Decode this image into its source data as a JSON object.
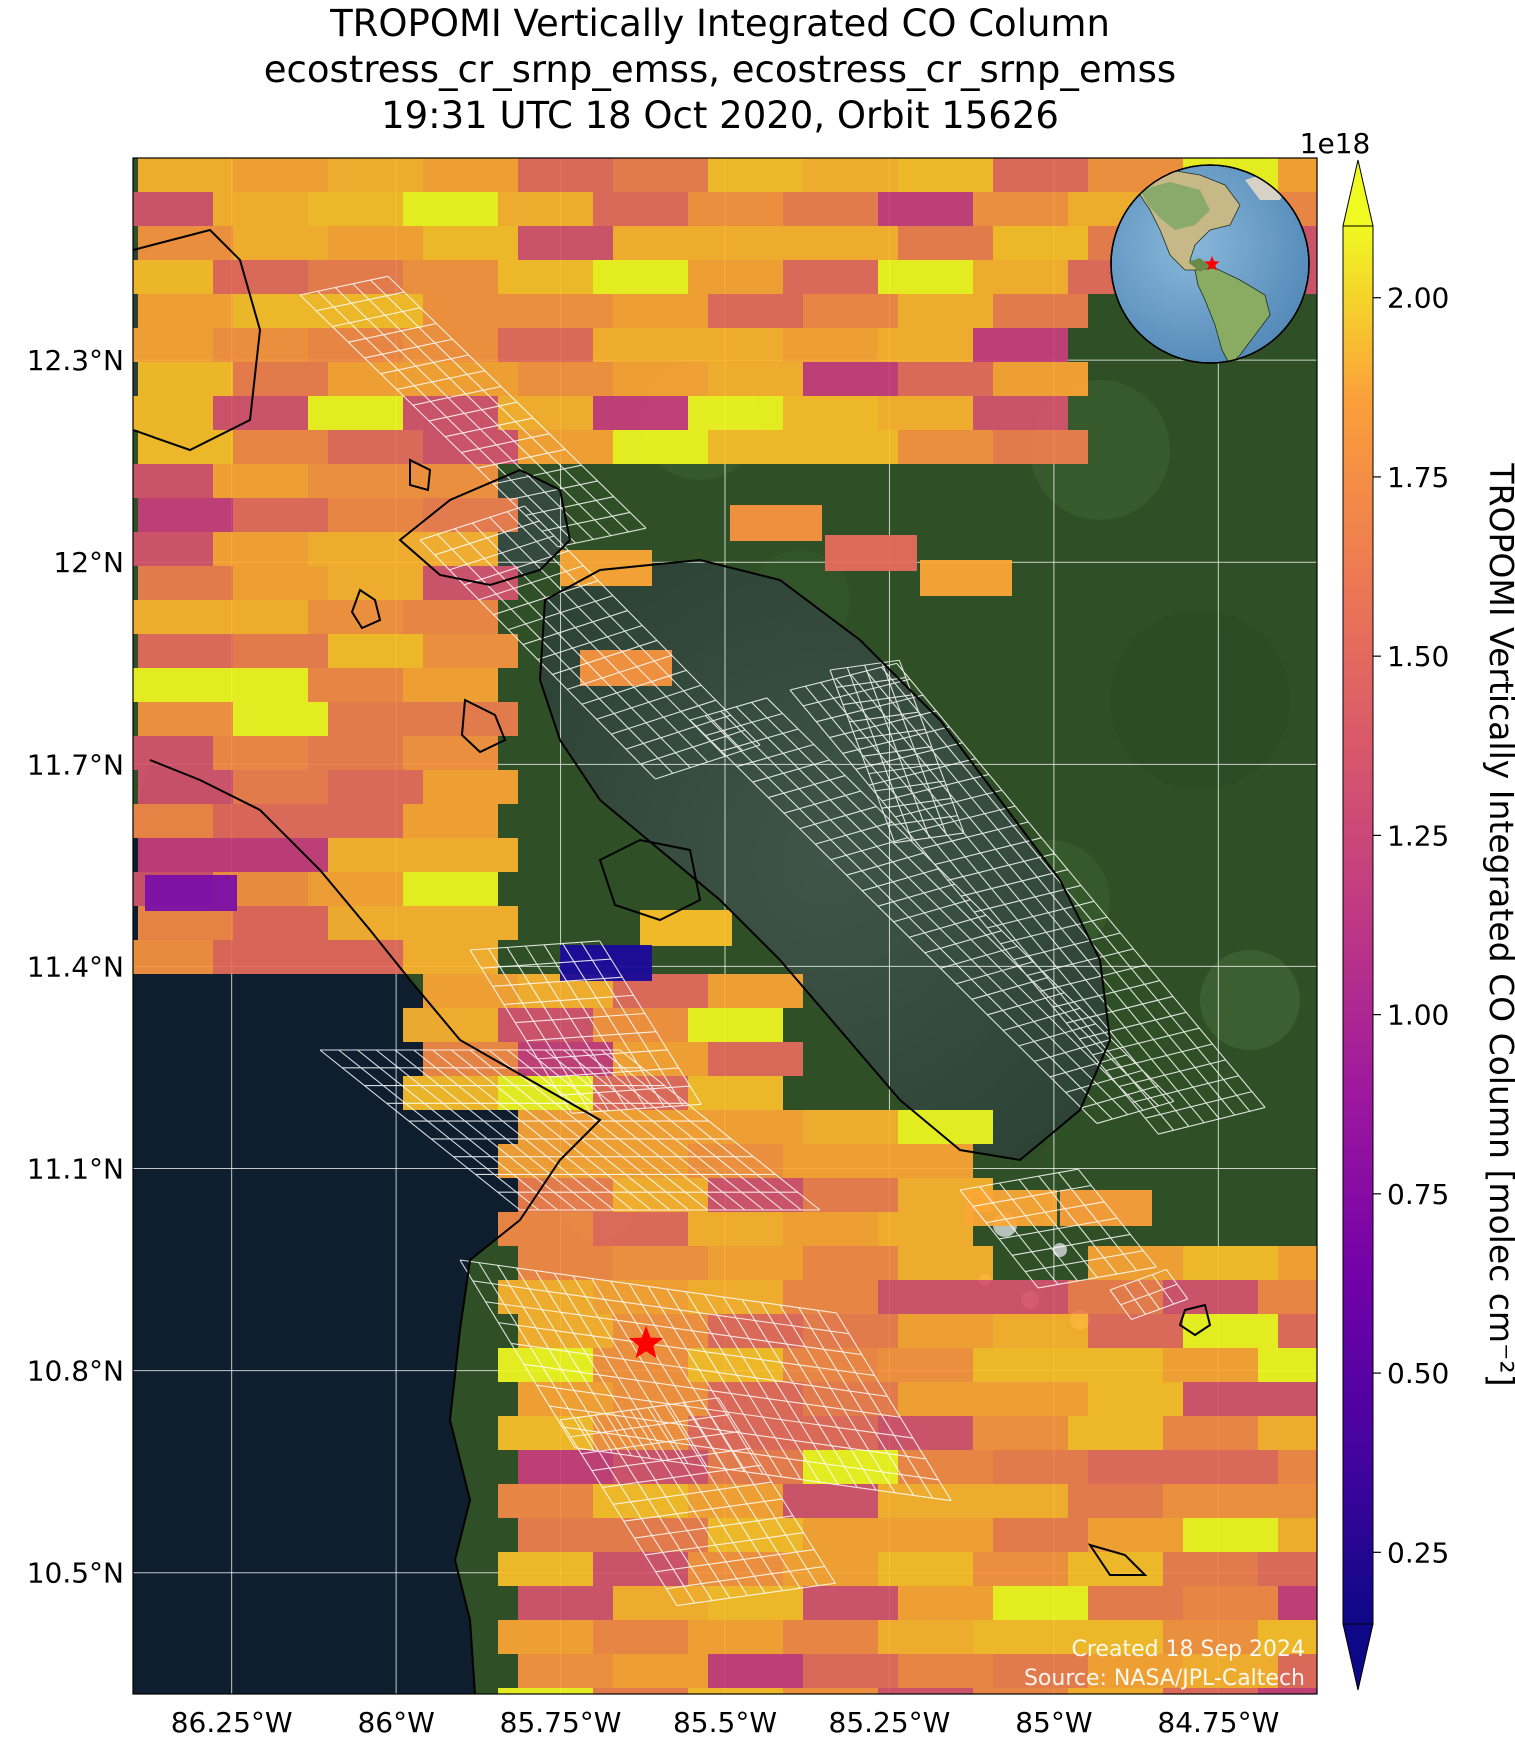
{
  "title": {
    "line1": "TROPOMI Vertically Integrated CO Column",
    "line2": "ecostress_cr_srnp_emss, ecostress_cr_srnp_emss",
    "line3": "19:31 UTC 18 Oct 2020, Orbit 15626"
  },
  "map": {
    "lon_range": [
      -86.4,
      -84.6
    ],
    "lat_range": [
      10.32,
      12.6
    ],
    "lat_ticks": [
      {
        "value": 12.3,
        "label": "12.3°N"
      },
      {
        "value": 12.0,
        "label": "12°N"
      },
      {
        "value": 11.7,
        "label": "11.7°N"
      },
      {
        "value": 11.4,
        "label": "11.4°N"
      },
      {
        "value": 11.1,
        "label": "11.1°N"
      },
      {
        "value": 10.8,
        "label": "10.8°N"
      },
      {
        "value": 10.5,
        "label": "10.5°N"
      }
    ],
    "lon_ticks": [
      {
        "value": -86.25,
        "label": "86.25°W"
      },
      {
        "value": -86.0,
        "label": "86°W"
      },
      {
        "value": -85.75,
        "label": "85.75°W"
      },
      {
        "value": -85.5,
        "label": "85.5°W"
      },
      {
        "value": -85.25,
        "label": "85.25°W"
      },
      {
        "value": -85.0,
        "label": "85°W"
      },
      {
        "value": -84.75,
        "label": "84.75°W"
      }
    ],
    "site_marker": {
      "lon": -85.62,
      "lat": 10.84,
      "icon": "red-star-icon",
      "color": "#ff0000"
    },
    "credit_line1": "Created 18 Sep 2024",
    "credit_line2": "Source: NASA/JPL-Caltech",
    "globe": {
      "icon": "globe-locator-icon",
      "marker_color": "#ff0000"
    }
  },
  "colorbar": {
    "label": "TROPOMI Vertically Integrated CO Column [molec cm⁻²]",
    "scale_label": "1e18",
    "range": [
      0.15,
      2.1
    ],
    "ticks": [
      "2.00",
      "1.75",
      "1.50",
      "1.25",
      "1.00",
      "0.75",
      "0.50",
      "0.25"
    ],
    "tick_values": [
      2.0,
      1.75,
      1.5,
      1.25,
      1.0,
      0.75,
      0.5,
      0.25
    ],
    "colormap": "plasma",
    "extend": "both"
  }
}
